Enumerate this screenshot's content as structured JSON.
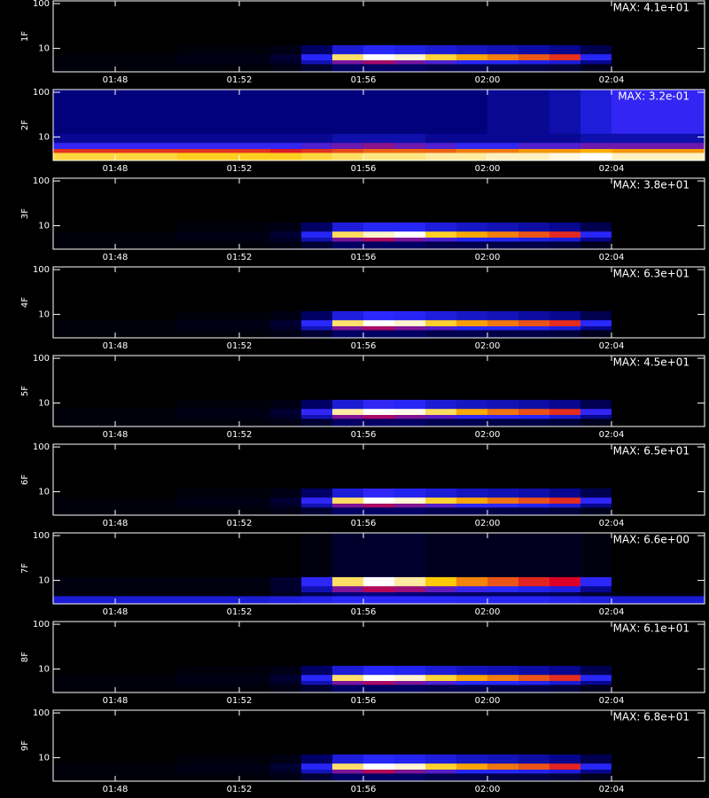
{
  "chart_data": [
    {
      "type": "heatmap",
      "ylabel": "1F",
      "annotation": "MAX: 4.1e+01",
      "zlim": [
        0,
        41
      ],
      "log_y": true,
      "xlim": [
        "01:46",
        "02:07"
      ],
      "xticks": [
        "01:48",
        "01:52",
        "01:56",
        "02:00",
        "02:04"
      ],
      "ylim": [
        3,
        115
      ],
      "yticks": [
        10,
        100
      ],
      "xbins": [
        "01:46",
        "01:50",
        "01:53",
        "01:54",
        "01:55",
        "01:56",
        "01:57",
        "01:58",
        "01:59",
        "02:00",
        "02:01",
        "02:02",
        "02:03",
        "02:04",
        "02:07"
      ],
      "ybins": [
        3,
        4.5,
        5.5,
        7.5,
        12,
        115
      ],
      "values": [
        [
          0.4,
          0.4,
          0.8,
          2.1,
          4.1,
          4.1,
          4.1,
          3.3,
          3.3,
          2.9,
          2.9,
          2.5,
          1.2,
          0
        ],
        [
          0.4,
          0.8,
          1.6,
          8.2,
          16,
          18,
          16,
          14,
          12,
          12,
          11,
          10,
          6.2,
          0
        ],
        [
          0.4,
          0.8,
          2.1,
          12,
          35,
          41,
          39,
          33,
          29,
          27,
          25,
          23,
          12,
          0
        ],
        [
          0,
          0.4,
          0.8,
          4.1,
          10,
          12,
          11,
          10,
          9,
          8.2,
          7.4,
          6.2,
          3.3,
          0
        ],
        [
          0,
          0,
          0,
          0,
          0,
          0,
          0,
          0,
          0,
          0,
          0,
          0,
          0,
          0
        ]
      ]
    },
    {
      "type": "heatmap",
      "ylabel": "2F",
      "annotation": "MAX: 3.2e-01",
      "zlim": [
        0,
        0.32
      ],
      "log_y": true,
      "xlim": [
        "01:46",
        "02:07"
      ],
      "xticks": [
        "01:48",
        "01:52",
        "01:56",
        "02:00",
        "02:04"
      ],
      "ylim": [
        3,
        115
      ],
      "yticks": [
        10,
        100
      ],
      "xbins": [
        "01:46",
        "01:50",
        "01:53",
        "01:54",
        "01:55",
        "01:56",
        "01:57",
        "01:58",
        "01:59",
        "02:00",
        "02:01",
        "02:02",
        "02:03",
        "02:04",
        "02:07"
      ],
      "ybins": [
        3,
        4.5,
        5.5,
        7.5,
        12,
        115
      ],
      "values": [
        [
          0.26,
          0.25,
          0.25,
          0.26,
          0.27,
          0.28,
          0.28,
          0.29,
          0.29,
          0.3,
          0.3,
          0.31,
          0.32,
          0.3
        ],
        [
          0.18,
          0.18,
          0.17,
          0.18,
          0.19,
          0.2,
          0.2,
          0.2,
          0.21,
          0.21,
          0.22,
          0.22,
          0.23,
          0.22
        ],
        [
          0.1,
          0.1,
          0.1,
          0.11,
          0.12,
          0.13,
          0.12,
          0.11,
          0.1,
          0.1,
          0.11,
          0.11,
          0.12,
          0.12
        ],
        [
          0.05,
          0.05,
          0.05,
          0.05,
          0.06,
          0.06,
          0.06,
          0.05,
          0.05,
          0.05,
          0.05,
          0.05,
          0.06,
          0.06
        ],
        [
          0.04,
          0.04,
          0.04,
          0.04,
          0.04,
          0.04,
          0.04,
          0.04,
          0.04,
          0.05,
          0.05,
          0.06,
          0.08,
          0.1
        ]
      ]
    },
    {
      "type": "heatmap",
      "ylabel": "3F",
      "annotation": "MAX: 3.8e+01",
      "zlim": [
        0,
        38
      ],
      "log_y": true,
      "xlim": [
        "01:46",
        "02:07"
      ],
      "xticks": [
        "01:48",
        "01:52",
        "01:56",
        "02:00",
        "02:04"
      ],
      "ylim": [
        3,
        115
      ],
      "yticks": [
        10,
        100
      ],
      "xbins": [
        "01:46",
        "01:50",
        "01:53",
        "01:54",
        "01:55",
        "01:56",
        "01:57",
        "01:58",
        "01:59",
        "02:00",
        "02:01",
        "02:02",
        "02:03",
        "02:04",
        "02:07"
      ],
      "ybins": [
        3,
        4.5,
        5.5,
        7.5,
        12,
        115
      ],
      "values": [
        [
          0.4,
          0.4,
          0.8,
          1.9,
          3.8,
          3.8,
          3.8,
          3,
          3,
          2.7,
          2.7,
          2.3,
          1.1,
          0
        ],
        [
          0.4,
          0.8,
          1.5,
          7.6,
          15,
          17,
          15,
          13,
          11,
          11,
          10,
          9.5,
          5.7,
          0
        ],
        [
          0.4,
          0.8,
          1.9,
          11,
          32,
          36,
          38,
          30,
          27,
          25,
          23,
          21,
          11,
          0
        ],
        [
          0,
          0.4,
          0.8,
          3.8,
          9.5,
          11,
          11,
          9.5,
          8.4,
          7.6,
          6.8,
          5.7,
          3,
          0
        ],
        [
          0,
          0,
          0,
          0,
          0,
          0,
          0,
          0,
          0,
          0,
          0,
          0,
          0,
          0
        ]
      ]
    },
    {
      "type": "heatmap",
      "ylabel": "4F",
      "annotation": "MAX: 6.3e+01",
      "zlim": [
        0,
        63
      ],
      "log_y": true,
      "xlim": [
        "01:46",
        "02:07"
      ],
      "xticks": [
        "01:48",
        "01:52",
        "01:56",
        "02:00",
        "02:04"
      ],
      "ylim": [
        3,
        115
      ],
      "yticks": [
        10,
        100
      ],
      "xbins": [
        "01:46",
        "01:50",
        "01:53",
        "01:54",
        "01:55",
        "01:56",
        "01:57",
        "01:58",
        "01:59",
        "02:00",
        "02:01",
        "02:02",
        "02:03",
        "02:04",
        "02:07"
      ],
      "ybins": [
        3,
        4.5,
        5.5,
        7.5,
        12,
        115
      ],
      "values": [
        [
          0.6,
          0.6,
          1.3,
          3.2,
          6.3,
          6.3,
          6.3,
          5,
          5,
          4.4,
          4.4,
          3.8,
          1.9,
          0
        ],
        [
          0.6,
          1.3,
          2.5,
          13,
          25,
          28,
          25,
          22,
          19,
          19,
          18,
          16,
          9.5,
          0
        ],
        [
          0.6,
          1.3,
          3.2,
          19,
          54,
          63,
          60,
          50,
          44,
          41,
          38,
          35,
          19,
          0
        ],
        [
          0,
          0.6,
          1.3,
          6.3,
          16,
          19,
          18,
          16,
          14,
          13,
          11,
          9.5,
          5,
          0
        ],
        [
          0,
          0,
          0,
          0,
          0,
          0,
          0,
          0,
          0,
          0,
          0,
          0,
          0,
          0
        ]
      ]
    },
    {
      "type": "heatmap",
      "ylabel": "5F",
      "annotation": "MAX: 4.5e+01",
      "zlim": [
        0,
        45
      ],
      "log_y": true,
      "xlim": [
        "01:46",
        "02:07"
      ],
      "xticks": [
        "01:48",
        "01:52",
        "01:56",
        "02:00",
        "02:04"
      ],
      "ylim": [
        3,
        115
      ],
      "yticks": [
        10,
        100
      ],
      "xbins": [
        "01:46",
        "01:50",
        "01:53",
        "01:54",
        "01:55",
        "01:56",
        "01:57",
        "01:58",
        "01:59",
        "02:00",
        "02:01",
        "02:02",
        "02:03",
        "02:04",
        "02:07"
      ],
      "ybins": [
        3,
        4.5,
        5.5,
        7.5,
        12,
        115
      ],
      "values": [
        [
          0.5,
          0.5,
          0.9,
          2.3,
          4.5,
          4.5,
          4.5,
          3.6,
          3.6,
          3.2,
          3.2,
          2.7,
          1.4,
          0
        ],
        [
          0.5,
          0.9,
          1.8,
          9,
          18,
          20,
          18,
          16,
          14,
          14,
          13,
          11,
          6.8,
          0
        ],
        [
          0.5,
          0.9,
          2.3,
          14,
          41,
          45,
          44,
          38,
          32,
          29,
          27,
          25,
          14,
          0
        ],
        [
          0,
          0.5,
          0.9,
          4.5,
          11,
          14,
          13,
          11,
          9.9,
          9,
          8.1,
          6.8,
          3.6,
          0
        ],
        [
          0,
          0,
          0,
          0,
          0,
          0,
          0,
          0,
          0,
          0,
          0,
          0,
          0,
          0
        ]
      ]
    },
    {
      "type": "heatmap",
      "ylabel": "6F",
      "annotation": "MAX: 6.5e+01",
      "zlim": [
        0,
        65
      ],
      "log_y": true,
      "xlim": [
        "01:46",
        "02:07"
      ],
      "xticks": [
        "01:48",
        "01:52",
        "01:56",
        "02:00",
        "02:04"
      ],
      "ylim": [
        3,
        115
      ],
      "yticks": [
        10,
        100
      ],
      "xbins": [
        "01:46",
        "01:50",
        "01:53",
        "01:54",
        "01:55",
        "01:56",
        "01:57",
        "01:58",
        "01:59",
        "02:00",
        "02:01",
        "02:02",
        "02:03",
        "02:04",
        "02:07"
      ],
      "ybins": [
        3,
        4.5,
        5.5,
        7.5,
        12,
        115
      ],
      "values": [
        [
          0.7,
          0.7,
          1.3,
          3.3,
          6.5,
          6.5,
          6.5,
          5.2,
          5.2,
          4.6,
          4.6,
          3.9,
          2,
          0
        ],
        [
          0.7,
          1.3,
          2.6,
          13,
          26,
          29,
          26,
          23,
          20,
          20,
          18,
          16,
          9.8,
          0
        ],
        [
          0.7,
          1.3,
          3.3,
          20,
          55,
          65,
          62,
          52,
          46,
          42,
          39,
          36,
          20,
          0
        ],
        [
          0,
          0.7,
          1.3,
          6.5,
          16,
          20,
          18,
          16,
          14,
          13,
          12,
          9.8,
          5.2,
          0
        ],
        [
          0,
          0,
          0,
          0,
          0,
          0,
          0,
          0,
          0,
          0,
          0,
          0,
          0,
          0
        ]
      ]
    },
    {
      "type": "heatmap",
      "ylabel": "7F",
      "annotation": "MAX: 6.6e+00",
      "zlim": [
        0,
        6.6
      ],
      "log_y": true,
      "xlim": [
        "01:46",
        "02:07"
      ],
      "xticks": [
        "01:48",
        "01:52",
        "01:56",
        "02:00",
        "02:04"
      ],
      "ylim": [
        3,
        115
      ],
      "yticks": [
        10,
        100
      ],
      "xbins": [
        "01:46",
        "01:50",
        "01:53",
        "01:54",
        "01:55",
        "01:56",
        "01:57",
        "01:58",
        "01:59",
        "02:00",
        "02:01",
        "02:02",
        "02:03",
        "02:04",
        "02:07"
      ],
      "ybins": [
        3,
        4.5,
        5.5,
        7.5,
        12,
        115
      ],
      "values": [
        [
          1.6,
          1.6,
          1.7,
          1.8,
          2,
          2,
          2,
          2,
          1.9,
          1.9,
          1.9,
          1.8,
          1.7,
          1.6
        ],
        [
          0.1,
          0.1,
          0.2,
          0.5,
          0.8,
          0.9,
          0.8,
          0.7,
          0.6,
          0.6,
          0.6,
          0.5,
          0.3,
          0.1
        ],
        [
          0.1,
          0.1,
          0.3,
          1.3,
          2.6,
          3,
          2.8,
          2.4,
          2.1,
          2,
          1.8,
          1.7,
          1,
          0
        ],
        [
          0.1,
          0.1,
          0.3,
          2,
          5.6,
          6.6,
          6,
          5,
          4.4,
          4,
          3.6,
          3.3,
          2,
          0
        ],
        [
          0,
          0,
          0,
          0.1,
          0.3,
          0.3,
          0.3,
          0.2,
          0.2,
          0.2,
          0.2,
          0.2,
          0.1,
          0
        ]
      ]
    },
    {
      "type": "heatmap",
      "ylabel": "8F",
      "annotation": "MAX: 6.1e+01",
      "zlim": [
        0,
        61
      ],
      "log_y": true,
      "xlim": [
        "01:46",
        "02:07"
      ],
      "xticks": [
        "01:48",
        "01:52",
        "01:56",
        "02:00",
        "02:04"
      ],
      "ylim": [
        3,
        115
      ],
      "yticks": [
        10,
        100
      ],
      "xbins": [
        "01:46",
        "01:50",
        "01:53",
        "01:54",
        "01:55",
        "01:56",
        "01:57",
        "01:58",
        "01:59",
        "02:00",
        "02:01",
        "02:02",
        "02:03",
        "02:04",
        "02:07"
      ],
      "ybins": [
        3,
        4.5,
        5.5,
        7.5,
        12,
        115
      ],
      "values": [
        [
          0.6,
          0.6,
          1.2,
          3,
          6.1,
          6.1,
          6.1,
          4.9,
          4.9,
          4.3,
          4.3,
          3.7,
          1.8,
          0
        ],
        [
          0.6,
          1.2,
          2.4,
          12,
          24,
          27,
          24,
          21,
          18,
          18,
          17,
          15,
          9.2,
          0
        ],
        [
          0.6,
          1.2,
          3,
          18,
          52,
          61,
          58,
          49,
          43,
          40,
          37,
          34,
          18,
          0
        ],
        [
          0,
          0.6,
          1.2,
          6.1,
          15,
          18,
          17,
          15,
          13,
          12,
          11,
          9.2,
          4.9,
          0
        ],
        [
          0,
          0,
          0,
          0,
          0,
          0,
          0,
          0,
          0,
          0,
          0,
          0,
          0,
          0
        ]
      ]
    },
    {
      "type": "heatmap",
      "ylabel": "9F",
      "annotation": "MAX: 6.8e+01",
      "zlim": [
        0,
        68
      ],
      "log_y": true,
      "xlim": [
        "01:46",
        "02:07"
      ],
      "xticks": [
        "01:48",
        "01:52",
        "01:56",
        "02:00",
        "02:04"
      ],
      "ylim": [
        3,
        115
      ],
      "yticks": [
        10,
        100
      ],
      "xbins": [
        "01:46",
        "01:50",
        "01:53",
        "01:54",
        "01:55",
        "01:56",
        "01:57",
        "01:58",
        "01:59",
        "02:00",
        "02:01",
        "02:02",
        "02:03",
        "02:04",
        "02:07"
      ],
      "ybins": [
        3,
        4.5,
        5.5,
        7.5,
        12,
        115
      ],
      "values": [
        [
          0.7,
          0.7,
          1.4,
          3.4,
          6.8,
          6.8,
          6.8,
          5.4,
          5.4,
          4.8,
          4.8,
          4.1,
          2,
          0
        ],
        [
          0.7,
          1.4,
          2.7,
          14,
          27,
          31,
          27,
          24,
          20,
          20,
          19,
          17,
          10,
          0
        ],
        [
          0.7,
          1.4,
          3.4,
          20,
          58,
          68,
          65,
          54,
          48,
          44,
          41,
          37,
          20,
          0
        ],
        [
          0,
          0.7,
          1.4,
          6.8,
          17,
          20,
          19,
          17,
          15,
          14,
          12,
          10,
          5.4,
          0
        ],
        [
          0,
          0,
          0,
          0,
          0,
          0,
          0,
          0,
          0,
          0,
          0,
          0,
          0,
          0
        ]
      ]
    }
  ]
}
